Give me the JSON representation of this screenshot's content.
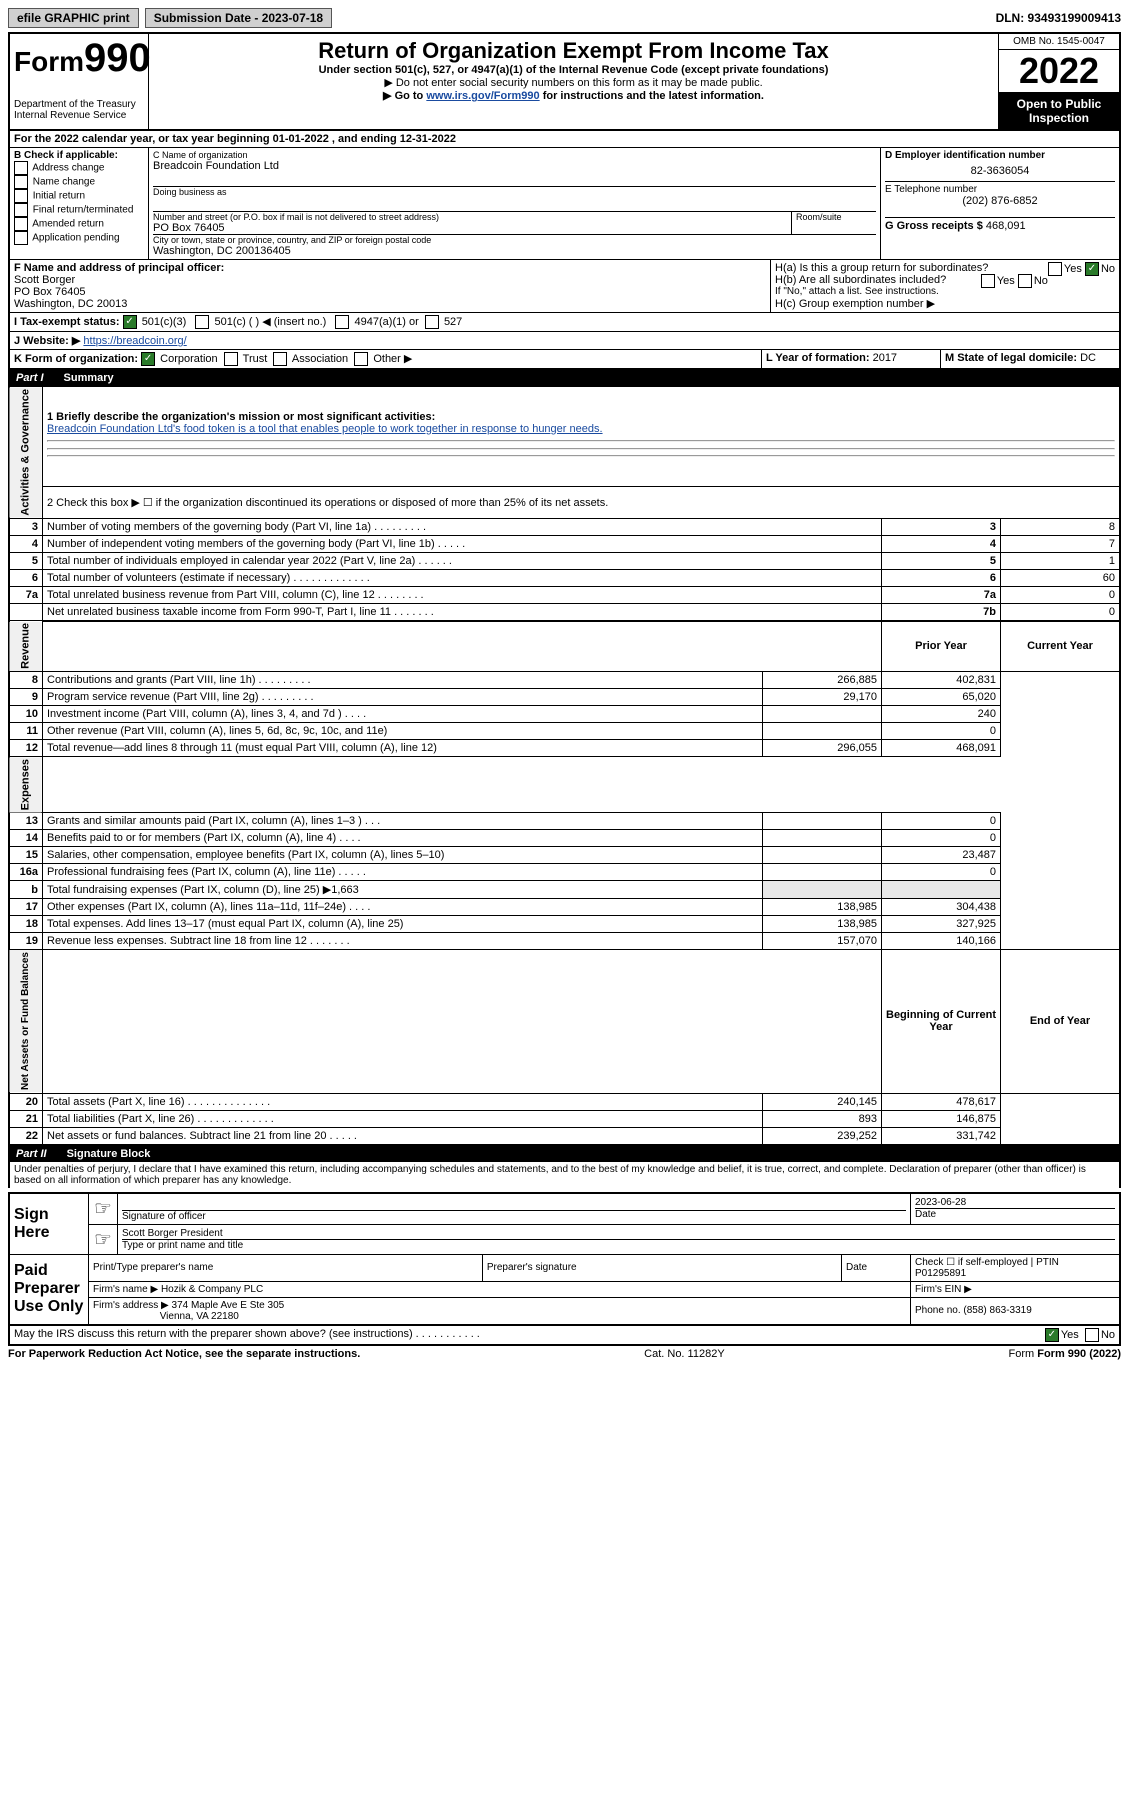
{
  "topbar": {
    "efile": "efile GRAPHIC print",
    "submission_label": "Submission Date - 2023-07-18",
    "dln": "DLN: 93493199009413"
  },
  "header": {
    "form_label": "Form",
    "form_number": "990",
    "dept": "Department of the Treasury",
    "irs": "Internal Revenue Service",
    "title": "Return of Organization Exempt From Income Tax",
    "subtitle": "Under section 501(c), 527, or 4947(a)(1) of the Internal Revenue Code (except private foundations)",
    "note1": "▶ Do not enter social security numbers on this form as it may be made public.",
    "note2_pre": "▶ Go to ",
    "note2_link": "www.irs.gov/Form990",
    "note2_post": " for instructions and the latest information.",
    "omb": "OMB No. 1545-0047",
    "year": "2022",
    "open": "Open to Public Inspection"
  },
  "lineA": "For the 2022 calendar year, or tax year beginning 01-01-2022    , and ending 12-31-2022",
  "boxB": {
    "label": "B Check if applicable:",
    "items": [
      "Address change",
      "Name change",
      "Initial return",
      "Final return/terminated",
      "Amended return",
      "Application pending"
    ]
  },
  "boxC": {
    "label": "C Name of organization",
    "name": "Breadcoin Foundation Ltd",
    "dba": "Doing business as",
    "addr_label": "Number and street (or P.O. box if mail is not delivered to street address)",
    "room": "Room/suite",
    "addr": "PO Box 76405",
    "city_label": "City or town, state or province, country, and ZIP or foreign postal code",
    "city": "Washington, DC  200136405"
  },
  "boxD": {
    "label": "D Employer identification number",
    "value": "82-3636054"
  },
  "boxE": {
    "label": "E Telephone number",
    "value": "(202) 876-6852"
  },
  "boxG": {
    "label": "G Gross receipts $",
    "value": "468,091"
  },
  "boxF": {
    "label": "F Name and address of principal officer:",
    "name": "Scott Borger",
    "addr1": "PO Box 76405",
    "addr2": "Washington, DC  20013"
  },
  "boxH": {
    "a": "H(a)  Is this a group return for subordinates?",
    "b": "H(b)  Are all subordinates included?",
    "b_note": "If \"No,\" attach a list. See instructions.",
    "c": "H(c)  Group exemption number ▶",
    "yes": "Yes",
    "no": "No"
  },
  "boxI": {
    "label": "I   Tax-exempt status:",
    "opt1": "501(c)(3)",
    "opt2": "501(c) (  ) ◀ (insert no.)",
    "opt3": "4947(a)(1) or",
    "opt4": "527"
  },
  "boxJ": {
    "label": "J   Website: ▶",
    "value": "https://breadcoin.org/"
  },
  "boxK": {
    "label": "K Form of organization:",
    "opts": [
      "Corporation",
      "Trust",
      "Association",
      "Other ▶"
    ]
  },
  "boxL": {
    "label": "L Year of formation:",
    "value": "2017"
  },
  "boxM": {
    "label": "M State of legal domicile:",
    "value": "DC"
  },
  "part1": {
    "label": "Part I",
    "title": "Summary",
    "mission_label": "1   Briefly describe the organization's mission or most significant activities:",
    "mission": "Breadcoin Foundation Ltd's food token is a tool that enables people to work together in response to hunger needs.",
    "line2": "2   Check this box ▶ ☐  if the organization discontinued its operations or disposed of more than 25% of its net assets.",
    "governance_rows": [
      {
        "n": "3",
        "text": "Number of voting members of the governing body (Part VI, line 1a)  .   .   .   .   .   .   .   .   .",
        "box": "3",
        "val": "8"
      },
      {
        "n": "4",
        "text": "Number of independent voting members of the governing body (Part VI, line 1b)  .   .   .   .   .",
        "box": "4",
        "val": "7"
      },
      {
        "n": "5",
        "text": "Total number of individuals employed in calendar year 2022 (Part V, line 2a)  .   .   .   .   .   .",
        "box": "5",
        "val": "1"
      },
      {
        "n": "6",
        "text": "Total number of volunteers (estimate if necessary)  .   .   .   .   .   .   .   .   .   .   .   .   .",
        "box": "6",
        "val": "60"
      },
      {
        "n": "7a",
        "text": "Total unrelated business revenue from Part VIII, column (C), line 12  .   .   .   .   .   .   .   .",
        "box": "7a",
        "val": "0"
      },
      {
        "n": "",
        "text": "Net unrelated business taxable income from Form 990-T, Part I, line 11  .   .   .   .   .   .   .",
        "box": "7b",
        "val": "0"
      }
    ],
    "col_headers": {
      "prior": "Prior Year",
      "current": "Current Year"
    },
    "revenue_rows": [
      {
        "n": "8",
        "text": "Contributions and grants (Part VIII, line 1h)  .   .   .   .   .   .   .   .   .",
        "prior": "266,885",
        "curr": "402,831"
      },
      {
        "n": "9",
        "text": "Program service revenue (Part VIII, line 2g)  .   .   .   .   .   .   .   .   .",
        "prior": "29,170",
        "curr": "65,020"
      },
      {
        "n": "10",
        "text": "Investment income (Part VIII, column (A), lines 3, 4, and 7d )  .   .   .   .",
        "prior": "",
        "curr": "240"
      },
      {
        "n": "11",
        "text": "Other revenue (Part VIII, column (A), lines 5, 6d, 8c, 9c, 10c, and 11e)",
        "prior": "",
        "curr": "0"
      },
      {
        "n": "12",
        "text": "Total revenue—add lines 8 through 11 (must equal Part VIII, column (A), line 12)",
        "prior": "296,055",
        "curr": "468,091"
      }
    ],
    "expense_rows": [
      {
        "n": "13",
        "text": "Grants and similar amounts paid (Part IX, column (A), lines 1–3 )  .   .   .",
        "prior": "",
        "curr": "0"
      },
      {
        "n": "14",
        "text": "Benefits paid to or for members (Part IX, column (A), line 4)  .   .   .   .",
        "prior": "",
        "curr": "0"
      },
      {
        "n": "15",
        "text": "Salaries, other compensation, employee benefits (Part IX, column (A), lines 5–10)",
        "prior": "",
        "curr": "23,487"
      },
      {
        "n": "16a",
        "text": "Professional fundraising fees (Part IX, column (A), line 11e)  .   .   .   .   .",
        "prior": "",
        "curr": "0"
      },
      {
        "n": "b",
        "text": "Total fundraising expenses (Part IX, column (D), line 25) ▶1,663",
        "prior": "shaded",
        "curr": "shaded"
      },
      {
        "n": "17",
        "text": "Other expenses (Part IX, column (A), lines 11a–11d, 11f–24e)  .   .   .   .",
        "prior": "138,985",
        "curr": "304,438"
      },
      {
        "n": "18",
        "text": "Total expenses. Add lines 13–17 (must equal Part IX, column (A), line 25)",
        "prior": "138,985",
        "curr": "327,925"
      },
      {
        "n": "19",
        "text": "Revenue less expenses. Subtract line 18 from line 12  .   .   .   .   .   .   .",
        "prior": "157,070",
        "curr": "140,166"
      }
    ],
    "na_headers": {
      "begin": "Beginning of Current Year",
      "end": "End of Year"
    },
    "netassets_rows": [
      {
        "n": "20",
        "text": "Total assets (Part X, line 16)  .   .   .   .   .   .   .   .   .   .   .   .   .   .",
        "prior": "240,145",
        "curr": "478,617"
      },
      {
        "n": "21",
        "text": "Total liabilities (Part X, line 26)  .   .   .   .   .   .   .   .   .   .   .   .   .",
        "prior": "893",
        "curr": "146,875"
      },
      {
        "n": "22",
        "text": "Net assets or fund balances. Subtract line 21 from line 20  .   .   .   .   .",
        "prior": "239,252",
        "curr": "331,742"
      }
    ]
  },
  "part2": {
    "label": "Part II",
    "title": "Signature Block",
    "penalties": "Under penalties of perjury, I declare that I have examined this return, including accompanying schedules and statements, and to the best of my knowledge and belief, it is true, correct, and complete. Declaration of preparer (other than officer) is based on all information of which preparer has any knowledge.",
    "sign_here": "Sign Here",
    "sig_officer": "Signature of officer",
    "date": "Date",
    "date_val": "2023-06-28",
    "officer_name": "Scott Borger  President",
    "type_name": "Type or print name and title",
    "paid": "Paid Preparer Use Only",
    "print_name": "Print/Type preparer's name",
    "prep_sig": "Preparer's signature",
    "check_if": "Check ☐ if self-employed",
    "ptin_label": "PTIN",
    "ptin": "P01295891",
    "firm_name_label": "Firm's name    ▶",
    "firm_name": "Hozik & Company PLC",
    "firm_ein": "Firm's EIN ▶",
    "firm_addr_label": "Firm's address ▶",
    "firm_addr": "374 Maple Ave E Ste 305",
    "firm_city": "Vienna, VA  22180",
    "phone_label": "Phone no.",
    "phone": "(858) 863-3319",
    "may_irs": "May the IRS discuss this return with the preparer shown above? (see instructions)  .   .   .   .   .   .   .   .   .   .   .",
    "yes": "Yes",
    "no": "No"
  },
  "footer": {
    "paperwork": "For Paperwork Reduction Act Notice, see the separate instructions.",
    "cat": "Cat. No. 11282Y",
    "form": "Form 990 (2022)"
  },
  "side_labels": {
    "gov": "Activities & Governance",
    "rev": "Revenue",
    "exp": "Expenses",
    "na": "Net Assets or Fund Balances"
  }
}
